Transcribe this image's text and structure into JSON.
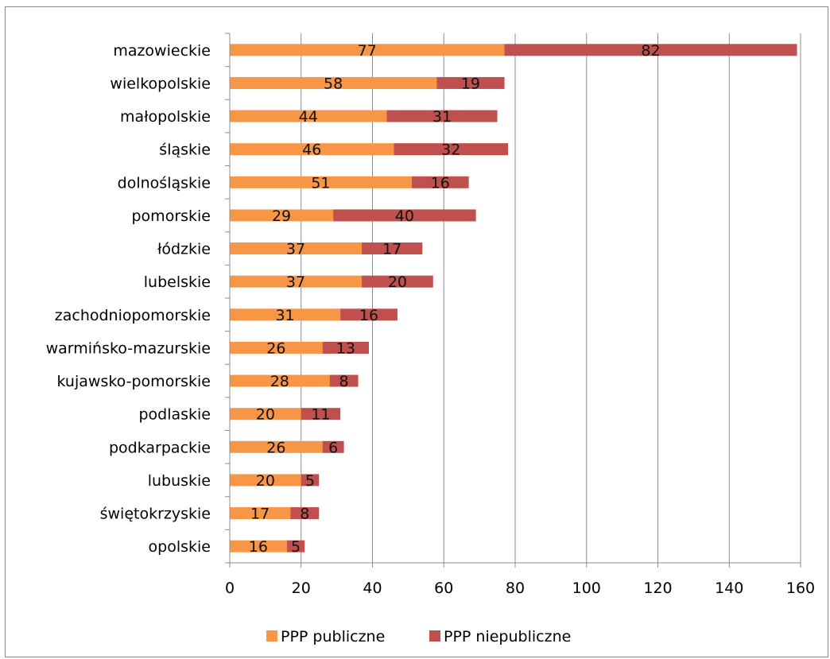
{
  "chart_data": {
    "type": "bar",
    "orientation": "horizontal",
    "stacked": true,
    "categories": [
      "mazowieckie",
      "wielkopolskie",
      "małopolskie",
      "śląskie",
      "dolnośląskie",
      "pomorskie",
      "łódzkie",
      "lubelskie",
      "zachodniopomorskie",
      "warmińsko-mazurskie",
      "kujawsko-pomorskie",
      "podlaskie",
      "podkarpackie",
      "lubuskie",
      "świętokrzyskie",
      "opolskie"
    ],
    "series": [
      {
        "name": "PPP publiczne",
        "color": "#F79646",
        "values": [
          77,
          58,
          44,
          46,
          51,
          29,
          37,
          37,
          31,
          26,
          28,
          20,
          26,
          20,
          17,
          16
        ]
      },
      {
        "name": "PPP niepubliczne",
        "color": "#C0504D",
        "values": [
          82,
          19,
          31,
          32,
          16,
          40,
          17,
          20,
          16,
          13,
          8,
          11,
          6,
          5,
          8,
          5
        ]
      }
    ],
    "xlim": [
      0,
      160
    ],
    "xticks": [
      0,
      20,
      40,
      60,
      80,
      100,
      120,
      140,
      160
    ],
    "grid": "vertical",
    "legend_position": "bottom"
  }
}
